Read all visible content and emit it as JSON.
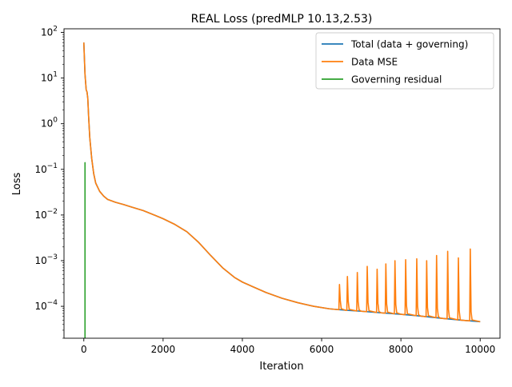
{
  "chart_data": {
    "type": "line",
    "title": "REAL Loss (predMLP 10.13,2.53)",
    "xlabel": "Iteration",
    "ylabel": "Loss",
    "yscale": "log",
    "xlim": [
      -500,
      10500
    ],
    "ylim": [
      2e-05,
      120
    ],
    "grid": false,
    "legend_position": "top-right",
    "x_ticks": [
      {
        "value": 0,
        "label": "0"
      },
      {
        "value": 2000,
        "label": "2000"
      },
      {
        "value": 4000,
        "label": "4000"
      },
      {
        "value": 6000,
        "label": "6000"
      },
      {
        "value": 8000,
        "label": "8000"
      },
      {
        "value": 10000,
        "label": "10000"
      }
    ],
    "y_ticks": [
      {
        "value": 0.0001,
        "base": "10",
        "exp": "−4"
      },
      {
        "value": 0.001,
        "base": "10",
        "exp": "−3"
      },
      {
        "value": 0.01,
        "base": "10",
        "exp": "−2"
      },
      {
        "value": 0.1,
        "base": "10",
        "exp": "−1"
      },
      {
        "value": 1,
        "base": "10",
        "exp": "0"
      },
      {
        "value": 10,
        "base": "10",
        "exp": "1"
      },
      {
        "value": 100,
        "base": "10",
        "exp": "2"
      }
    ],
    "series": [
      {
        "name": "Total (data + governing)",
        "color": "#1f77b4",
        "x": [
          0,
          30,
          60,
          80,
          100,
          120,
          150,
          200,
          250,
          300,
          400,
          500,
          600,
          800,
          1000,
          1200,
          1500,
          1800,
          2000,
          2300,
          2600,
          2900,
          3200,
          3500,
          3800,
          4000,
          4300,
          4600,
          5000,
          5400,
          5800,
          6200,
          6400,
          6600,
          7000,
          7500,
          8000,
          8500,
          9000,
          9500,
          10000
        ],
        "y": [
          60,
          12,
          5.5,
          5,
          3.6,
          1.5,
          0.5,
          0.17,
          0.08,
          0.05,
          0.033,
          0.026,
          0.022,
          0.019,
          0.017,
          0.015,
          0.0125,
          0.0098,
          0.0083,
          0.0062,
          0.0043,
          0.0025,
          0.0013,
          0.0007,
          0.00043,
          0.00034,
          0.00026,
          0.0002,
          0.00015,
          0.00012,
          0.0001,
          8.8e-05,
          8.5e-05,
          8.2e-05,
          7.8e-05,
          7.2e-05,
          6.7e-05,
          6.1e-05,
          5.5e-05,
          5e-05,
          4.6e-05
        ]
      },
      {
        "name": "Data MSE",
        "color": "#ff7f0e",
        "x": [
          0,
          30,
          60,
          80,
          100,
          120,
          150,
          200,
          250,
          300,
          400,
          500,
          600,
          800,
          1000,
          1200,
          1500,
          1800,
          2000,
          2300,
          2600,
          2900,
          3200,
          3500,
          3800,
          4000,
          4300,
          4600,
          5000,
          5400,
          5800,
          6200,
          6400,
          6600,
          7000,
          7500,
          8000,
          8500,
          9000,
          9500,
          10000
        ],
        "y": [
          60,
          12,
          5.5,
          5,
          3.6,
          1.5,
          0.5,
          0.17,
          0.08,
          0.05,
          0.033,
          0.026,
          0.022,
          0.019,
          0.017,
          0.015,
          0.0125,
          0.0098,
          0.0083,
          0.0062,
          0.0043,
          0.0025,
          0.0013,
          0.0007,
          0.00043,
          0.00034,
          0.00026,
          0.0002,
          0.00015,
          0.00012,
          0.0001,
          8.8e-05,
          8.5e-05,
          8.2e-05,
          7.8e-05,
          7.2e-05,
          6.7e-05,
          6.1e-05,
          5.5e-05,
          5e-05,
          4.6e-05
        ],
        "spikes": [
          {
            "x": 6450,
            "peak": 0.0003
          },
          {
            "x": 6650,
            "peak": 0.00045
          },
          {
            "x": 6900,
            "peak": 0.00055
          },
          {
            "x": 7150,
            "peak": 0.00075
          },
          {
            "x": 7400,
            "peak": 0.00065
          },
          {
            "x": 7620,
            "peak": 0.00085
          },
          {
            "x": 7850,
            "peak": 0.001
          },
          {
            "x": 8120,
            "peak": 0.00105
          },
          {
            "x": 8400,
            "peak": 0.0011
          },
          {
            "x": 8650,
            "peak": 0.001
          },
          {
            "x": 8900,
            "peak": 0.0013
          },
          {
            "x": 9180,
            "peak": 0.0016
          },
          {
            "x": 9450,
            "peak": 0.00115
          },
          {
            "x": 9750,
            "peak": 0.0018
          }
        ]
      },
      {
        "name": "Governing residual",
        "color": "#2ca02c",
        "x": [
          30,
          30,
          30
        ],
        "y": [
          2e-05,
          0.14,
          2e-05
        ]
      }
    ]
  }
}
